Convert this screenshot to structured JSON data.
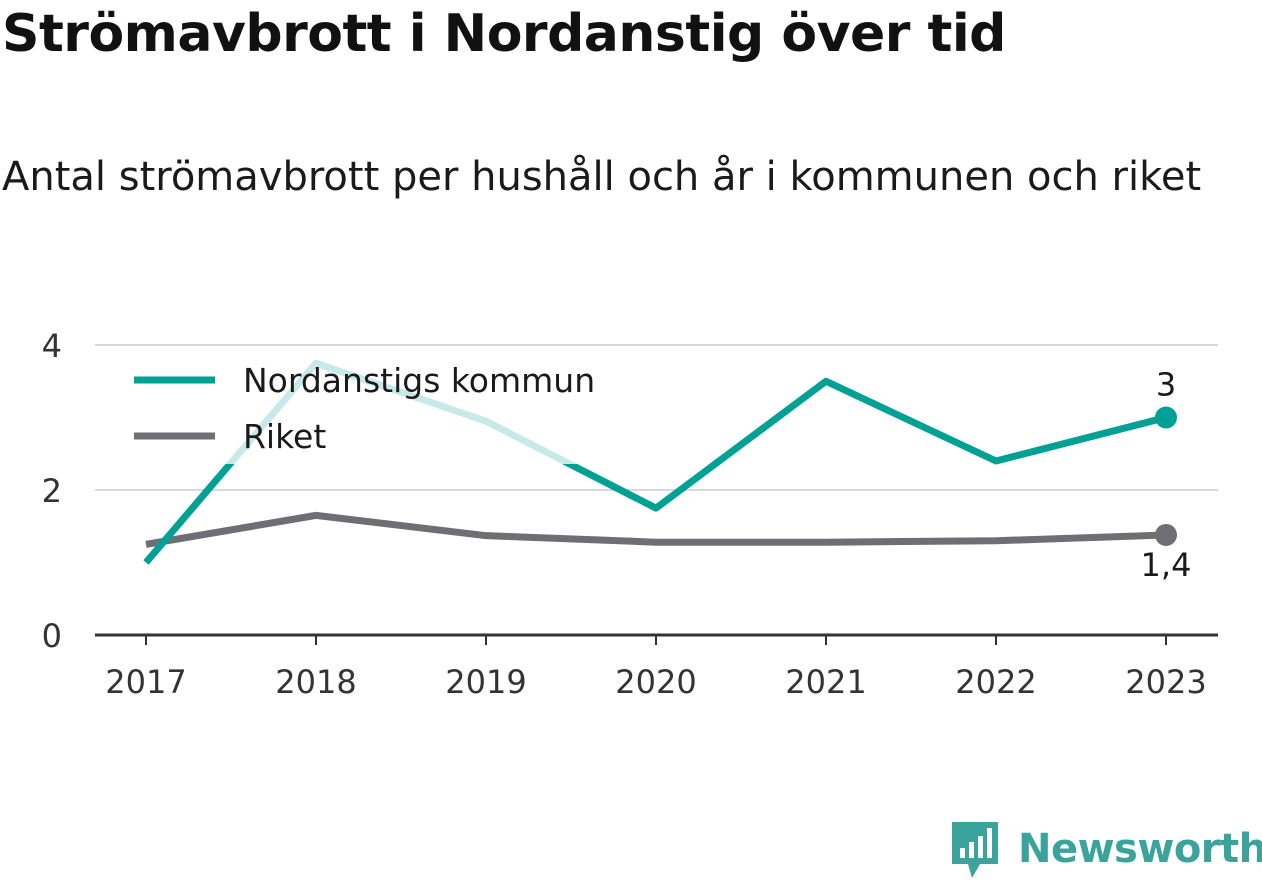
{
  "title": "Strömavbrott i Nordanstig över tid",
  "subtitle": "Antal strömavbrott per hushåll och år i kommunen och riket",
  "brand": {
    "name": "Newsworthy",
    "icon": "newsworthy-logo-icon"
  },
  "colors": {
    "kommun": "#00a195",
    "kommun_faded": "#cdeeeb",
    "riket": "#6f6e75",
    "grid": "#d9d9d9",
    "axis": "#333333",
    "brand": "#3aa39b"
  },
  "chart_data": {
    "type": "line",
    "x": [
      "2017",
      "2018",
      "2019",
      "2020",
      "2021",
      "2022",
      "2023"
    ],
    "ylim": [
      0,
      4
    ],
    "yticks": [
      "0",
      "2",
      "4"
    ],
    "grid": true,
    "legend_position": "top-left",
    "series": [
      {
        "name": "Nordanstigs kommun",
        "values": [
          1.0,
          3.75,
          2.95,
          1.75,
          3.5,
          2.4,
          3.0
        ],
        "end_label": "3"
      },
      {
        "name": "Riket",
        "values": [
          1.25,
          1.65,
          1.37,
          1.28,
          1.28,
          1.3,
          1.38
        ],
        "end_label": "1,4"
      }
    ]
  }
}
